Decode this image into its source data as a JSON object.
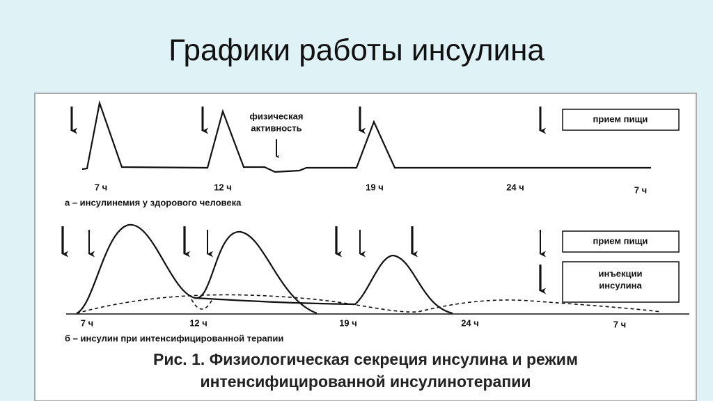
{
  "header": {
    "title": "Графики работы инсулина"
  },
  "panel_a": {
    "times": [
      "7 ч",
      "12 ч",
      "19 ч",
      "24 ч",
      "7 ч"
    ],
    "activity": [
      "физическая",
      "активность"
    ],
    "legend": "прием пищи",
    "caption": "а – инсулинемия у здорового человека"
  },
  "panel_b": {
    "times": [
      "7 ч",
      "12 ч",
      "19 ч",
      "24 ч",
      "7 ч"
    ],
    "legend_meal": "прием пищи",
    "legend_injection": [
      "инъекции",
      "инсулина"
    ],
    "caption": "б – инсулин при интенсифицированной терапии"
  },
  "figure_caption": [
    "Рис. 1. Физиологическая секреция инсулина и режим",
    "интенсифицированной инсулинотерапии"
  ]
}
